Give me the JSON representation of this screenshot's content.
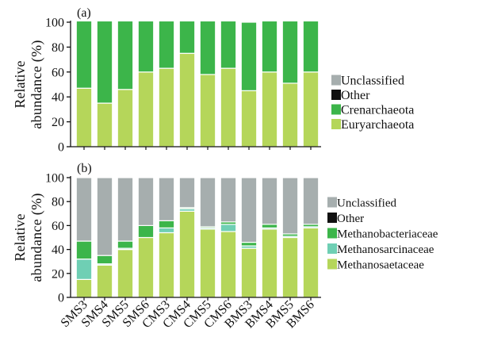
{
  "chart_data": [
    {
      "type": "bar",
      "stacked": true,
      "panel_label": "(a)",
      "ylabel": "Relative abundance (%)",
      "ylim": [
        0,
        100
      ],
      "yticks": [
        0,
        20,
        40,
        60,
        80,
        100
      ],
      "grid": false,
      "legend_position": "right",
      "categories": [
        "SMS3",
        "SMS4",
        "SMS5",
        "SMS6",
        "CMS3",
        "CMS4",
        "CMS5",
        "CMS6",
        "BMS3",
        "BMS4",
        "BMS5",
        "BMS6"
      ],
      "series": [
        {
          "name": "Euryarchaeota",
          "color": "#b5d65a",
          "values": [
            47,
            35,
            46,
            60,
            63,
            75,
            58,
            63,
            45,
            60,
            51,
            60
          ]
        },
        {
          "name": "Crenarchaeota",
          "color": "#3cb54a",
          "values": [
            54,
            66,
            55,
            41,
            38,
            26,
            43,
            38,
            55,
            41,
            50,
            41
          ]
        },
        {
          "name": "Other",
          "color": "#111111",
          "values": [
            0,
            0,
            0,
            0,
            0,
            0,
            0,
            0,
            0,
            0,
            0,
            0
          ]
        },
        {
          "name": "Unclassified",
          "color": "#a6aeae",
          "values": [
            0,
            0,
            0,
            0,
            0,
            0,
            0,
            0,
            0,
            0,
            0,
            0
          ]
        }
      ]
    },
    {
      "type": "bar",
      "stacked": true,
      "panel_label": "(b)",
      "ylabel": "Relative abundance (%)",
      "ylim": [
        0,
        100
      ],
      "yticks": [
        0,
        20,
        40,
        60,
        80,
        100
      ],
      "grid": false,
      "legend_position": "right",
      "categories": [
        "SMS3",
        "SMS4",
        "SMS5",
        "SMS6",
        "CMS3",
        "CMS4",
        "CMS5",
        "CMS6",
        "BMS3",
        "BMS4",
        "BMS5",
        "BMS6"
      ],
      "series": [
        {
          "name": "Methanosaetaceae",
          "color": "#b5d65a",
          "values": [
            15,
            27,
            40,
            50,
            54,
            72,
            57,
            55,
            41,
            57,
            50,
            58
          ]
        },
        {
          "name": "Methanosarcinaceae",
          "color": "#6fcfb4",
          "values": [
            17,
            1,
            1,
            0,
            4,
            2,
            1,
            6,
            2,
            1,
            1,
            1
          ]
        },
        {
          "name": "Methanobacteriaceae",
          "color": "#3cb54a",
          "values": [
            15,
            7,
            6,
            10,
            6,
            1,
            1,
            2,
            3,
            3,
            2,
            2
          ]
        },
        {
          "name": "Other",
          "color": "#111111",
          "values": [
            0,
            0,
            0,
            0,
            0,
            0,
            0,
            0,
            0,
            0,
            0,
            0
          ]
        },
        {
          "name": "Unclassified",
          "color": "#a6aeae",
          "values": [
            53,
            65,
            53,
            40,
            36,
            25,
            41,
            37,
            54,
            39,
            47,
            39
          ]
        }
      ]
    }
  ],
  "legends": [
    [
      "Unclassified",
      "Other",
      "Crenarchaeota",
      "Euryarchaeota"
    ],
    [
      "Unclassified",
      "Other",
      "Methanobacteriaceae",
      "Methanosarcinaceae",
      "Methanosaetaceae"
    ]
  ]
}
